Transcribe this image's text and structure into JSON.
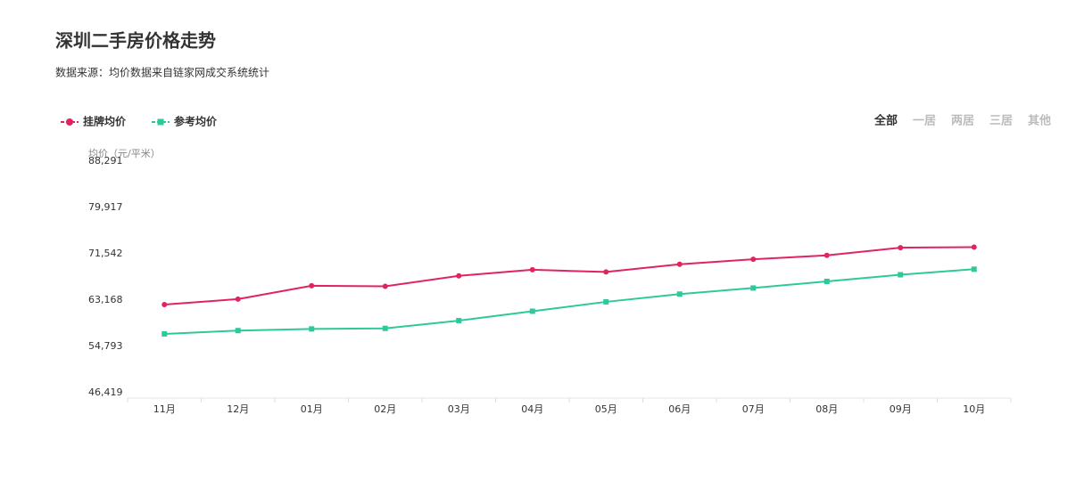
{
  "chart_data": {
    "type": "line",
    "title": "深圳二手房价格走势",
    "subtitle": "数据来源：均价数据来自链家网成交系统统计",
    "y_label": "均价（元/平米）",
    "tabs": [
      "全部",
      "一居",
      "两居",
      "三居",
      "其他"
    ],
    "categories": [
      "11月",
      "12月",
      "01月",
      "02月",
      "03月",
      "04月",
      "05月",
      "06月",
      "07月",
      "08月",
      "09月",
      "10月"
    ],
    "series": [
      {
        "name": "挂牌均价",
        "color": "#e0245e",
        "marker": "circle",
        "values": [
          63000,
          64000,
          66400,
          66300,
          68200,
          69300,
          68900,
          70300,
          71200,
          71900,
          73300,
          73400
        ]
      },
      {
        "name": "参考均价",
        "color": "#2ec99a",
        "marker": "square",
        "values": [
          57700,
          58300,
          58600,
          58700,
          60100,
          61800,
          63500,
          64900,
          66000,
          67200,
          68400,
          69400
        ]
      }
    ],
    "ylim": [
      46419,
      88291
    ],
    "yticks": [
      {
        "value": 46419,
        "label": "46,419"
      },
      {
        "value": 54793,
        "label": "54,793"
      },
      {
        "value": 63168,
        "label": "63,168"
      },
      {
        "value": 71542,
        "label": "71,542"
      },
      {
        "value": 79917,
        "label": "79,917"
      },
      {
        "value": 88291,
        "label": "88,291"
      }
    ],
    "grid": false
  }
}
